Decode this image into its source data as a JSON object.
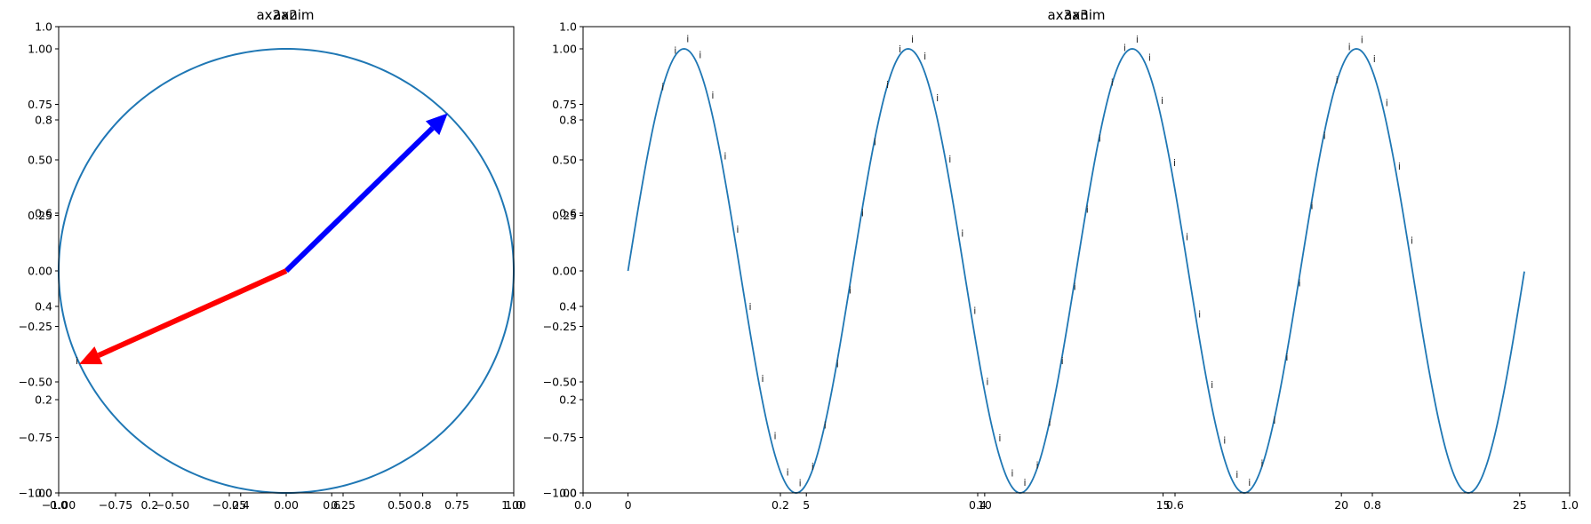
{
  "chart_data": [
    {
      "type": "line",
      "overlay_titles": [
        "ax2",
        "ax2anim"
      ],
      "overlay_axes": {
        "xlim": [
          0,
          1
        ],
        "ylim": [
          0,
          1
        ],
        "xticks": [
          "0.0",
          "0.2",
          "0.4",
          "0.6",
          "0.8",
          "1.0"
        ],
        "yticks": [
          "0.0",
          "0.2",
          "0.4",
          "0.6",
          "0.8",
          "1.0"
        ]
      },
      "xlim": [
        -1.0,
        1.0
      ],
      "ylim": [
        -1.0,
        1.1
      ],
      "xticks": [
        "-1.00",
        "-0.75",
        "-0.50",
        "-0.25",
        "0.00",
        "0.25",
        "0.50",
        "0.75",
        "1.00"
      ],
      "yticks": [
        "-1.00",
        "-0.75",
        "-0.50",
        "-0.25",
        "0.00",
        "0.25",
        "0.50",
        "0.75",
        "1.00"
      ],
      "series": [
        {
          "kind": "circle",
          "center": [
            0,
            0
          ],
          "radius": 1.0,
          "color": "#1f77b4"
        }
      ],
      "arrows": [
        {
          "from": [
            0,
            0
          ],
          "to": [
            0.71,
            0.71
          ],
          "color": "#0000ff"
        },
        {
          "from": [
            0,
            0
          ],
          "to": [
            -0.91,
            -0.42
          ],
          "color": "#ff0000"
        }
      ],
      "annotations": [
        {
          "text": "i",
          "x": -0.92,
          "y": -0.42
        }
      ],
      "colors": {
        "line": "#1f77b4",
        "arrow_a": "#0000ff",
        "arrow_b": "#ff0000"
      }
    },
    {
      "type": "line",
      "overlay_titles": [
        "ax3",
        "ax3anim"
      ],
      "overlay_axes": {
        "xlim": [
          0,
          1
        ],
        "ylim": [
          0,
          1
        ],
        "xticks": [
          "0.0",
          "0.2",
          "0.4",
          "0.6",
          "0.8",
          "1.0"
        ],
        "yticks": [
          "0.0",
          "0.2",
          "0.4",
          "0.6",
          "0.8",
          "1.0"
        ]
      },
      "xlim": [
        -1.26,
        26.4
      ],
      "ylim": [
        -1.0,
        1.1
      ],
      "xticks": [
        "0",
        "5",
        "10",
        "15",
        "20",
        "25"
      ],
      "yticks": [
        "-1.00",
        "-0.75",
        "-0.50",
        "-0.25",
        "0.00",
        "0.25",
        "0.50",
        "0.75",
        "1.00"
      ],
      "series": [
        {
          "kind": "sine",
          "x_range": [
            0,
            25.13
          ],
          "frequency": 1.0,
          "amplitude": 1.0,
          "color": "#1f77b4"
        }
      ],
      "annotations_rule": {
        "text": "i",
        "x_start": 0.9,
        "x_end": 22.2,
        "x_step": 0.35,
        "offset_y": 0.03
      },
      "colors": {
        "line": "#1f77b4"
      }
    }
  ]
}
